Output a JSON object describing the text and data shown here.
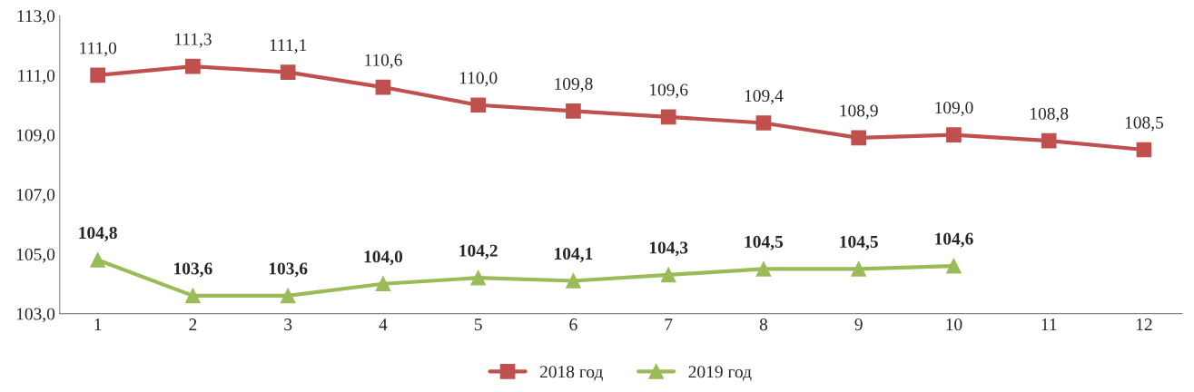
{
  "chart_data": {
    "type": "line",
    "categories": [
      "1",
      "2",
      "3",
      "4",
      "5",
      "6",
      "7",
      "8",
      "9",
      "10",
      "11",
      "12"
    ],
    "series": [
      {
        "name": "2018 год",
        "color": "#c0504d",
        "marker": "square",
        "values": [
          111.0,
          111.3,
          111.1,
          110.6,
          110.0,
          109.8,
          109.6,
          109.4,
          108.9,
          109.0,
          108.8,
          108.5
        ],
        "value_labels": [
          "111,0",
          "111,3",
          "111,1",
          "110,6",
          "110,0",
          "109,8",
          "109,6",
          "109,4",
          "108,9",
          "109,0",
          "108,8",
          "108,5"
        ]
      },
      {
        "name": "2019 год",
        "color": "#9bbb59",
        "marker": "triangle",
        "values": [
          104.8,
          103.6,
          103.6,
          104.0,
          104.2,
          104.1,
          104.3,
          104.5,
          104.5,
          104.6,
          null,
          null
        ],
        "value_labels": [
          "104,8",
          "103,6",
          "103,6",
          "104,0",
          "104,2",
          "104,1",
          "104,3",
          "104,5",
          "104,5",
          "104,6",
          null,
          null
        ]
      }
    ],
    "ylim": [
      103.0,
      113.0
    ],
    "yticks": [
      {
        "value": 103.0,
        "label": "103,0"
      },
      {
        "value": 105.0,
        "label": "105,0"
      },
      {
        "value": 107.0,
        "label": "107,0"
      },
      {
        "value": 109.0,
        "label": "109,0"
      },
      {
        "value": 111.0,
        "label": "111,0"
      },
      {
        "value": 113.0,
        "label": "113,0"
      }
    ],
    "grid": false,
    "legend": "bottom",
    "line_style": "solid"
  }
}
